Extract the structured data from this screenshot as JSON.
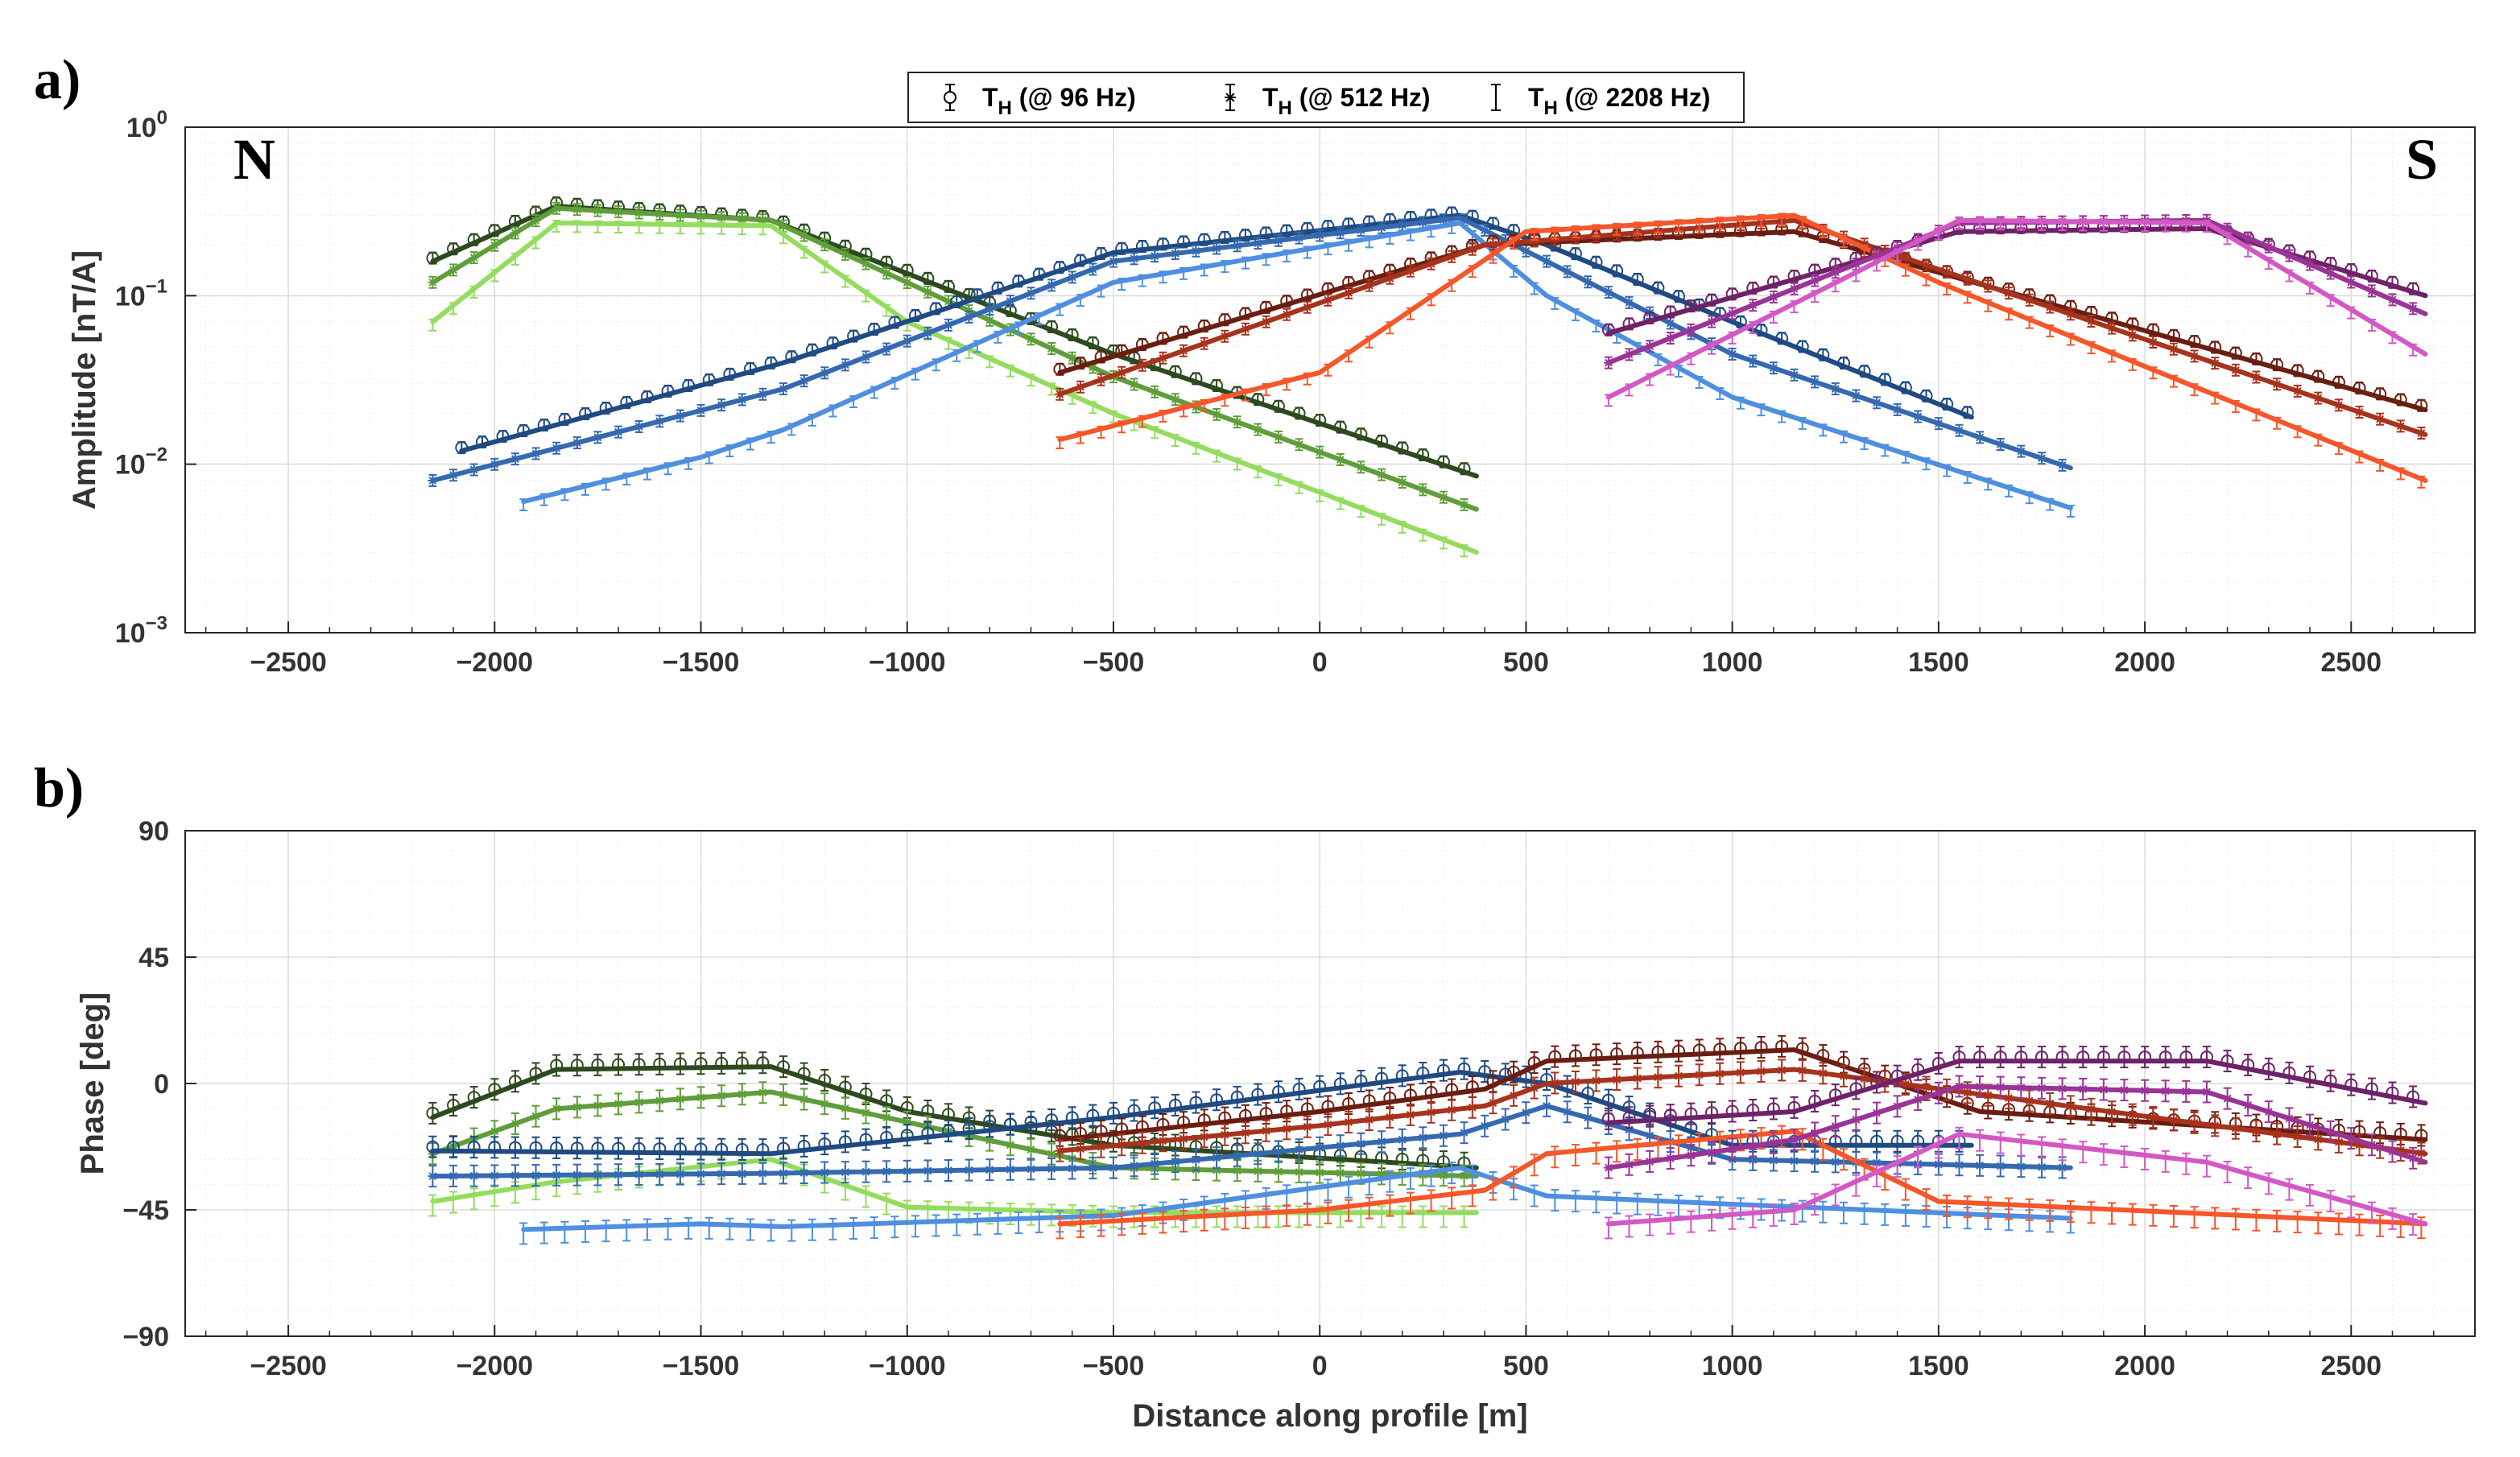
{
  "figure": {
    "panel_a_label": "a)",
    "panel_b_label": "b)",
    "north_label": "N",
    "south_label": "S",
    "legend": [
      {
        "name": "T_H (@ 96 Hz)",
        "prefix": "T",
        "sub": "H",
        "suffix": " (@ 96 Hz)",
        "marker": "circle"
      },
      {
        "name": "T_H (@ 512 Hz)",
        "prefix": "T",
        "sub": "H",
        "suffix": " (@ 512 Hz)",
        "marker": "star"
      },
      {
        "name": "T_H (@ 2208 Hz)",
        "prefix": "T",
        "sub": "H",
        "suffix": " (@ 2208 Hz)",
        "marker": "none"
      }
    ]
  },
  "chart_data": [
    {
      "type": "line",
      "panel": "a",
      "ylabel": "Amplitude [nT/A]",
      "yscale": "log",
      "xlim": [
        -2750,
        2800
      ],
      "ylim": [
        0.001,
        1
      ],
      "x_ticks": [
        -2500,
        -2000,
        -1500,
        -1000,
        -500,
        0,
        500,
        1000,
        1500,
        2000,
        2500
      ],
      "y_ticks": [
        {
          "value": 0.001,
          "base": "10",
          "exp": "-3"
        },
        {
          "value": 0.01,
          "base": "10",
          "exp": "-2"
        },
        {
          "value": 0.1,
          "base": "10",
          "exp": "-1"
        },
        {
          "value": 1,
          "base": "10",
          "exp": "0"
        }
      ],
      "grid": true,
      "legend_position": "top-center",
      "series": [
        {
          "color": "#2c4a1e",
          "freq": "96 Hz",
          "x": [
            -2150,
            -1850,
            -1330,
            -500,
            380
          ],
          "y": [
            0.16,
            0.34,
            0.28,
            0.045,
            0.0085
          ]
        },
        {
          "color": "#5f9e3a",
          "freq": "512 Hz",
          "x": [
            -2150,
            -1850,
            -1330,
            -500,
            380
          ],
          "y": [
            0.12,
            0.33,
            0.28,
            0.033,
            0.0054
          ]
        },
        {
          "color": "#94dc5e",
          "freq": "2208 Hz",
          "x": [
            -2150,
            -1850,
            -1330,
            -1000,
            -500,
            380
          ],
          "y": [
            0.07,
            0.27,
            0.26,
            0.07,
            0.02,
            0.003
          ]
        },
        {
          "color": "#1f4a82",
          "freq": "96 Hz",
          "x": [
            -2080,
            -1300,
            -500,
            340,
            550,
            1000,
            1580
          ],
          "y": [
            0.012,
            0.04,
            0.18,
            0.3,
            0.2,
            0.07,
            0.019
          ]
        },
        {
          "color": "#3569b0",
          "freq": "512 Hz",
          "x": [
            -2150,
            -1300,
            -500,
            340,
            550,
            1000,
            1820
          ],
          "y": [
            0.008,
            0.028,
            0.16,
            0.29,
            0.16,
            0.045,
            0.0095
          ]
        },
        {
          "color": "#4e8fe0",
          "freq": "2208 Hz",
          "x": [
            -1930,
            -1500,
            -1300,
            -500,
            340,
            550,
            1000,
            1820
          ],
          "y": [
            0.006,
            0.011,
            0.016,
            0.12,
            0.27,
            0.1,
            0.025,
            0.0055
          ]
        },
        {
          "color": "#6a1e12",
          "freq": "96 Hz",
          "x": [
            -630,
            400,
            1150,
            2680
          ],
          "y": [
            0.035,
            0.2,
            0.24,
            0.021
          ]
        },
        {
          "color": "#a8331d",
          "freq": "512 Hz",
          "x": [
            -630,
            400,
            1150,
            2680
          ],
          "y": [
            0.026,
            0.2,
            0.28,
            0.015
          ]
        },
        {
          "color": "#f5562a",
          "freq": "2208 Hz",
          "x": [
            -630,
            0,
            500,
            1150,
            1500,
            2680
          ],
          "y": [
            0.014,
            0.035,
            0.24,
            0.3,
            0.12,
            0.008
          ]
        },
        {
          "color": "#6e2268",
          "freq": "96 Hz",
          "x": [
            700,
            1550,
            2150,
            2680
          ],
          "y": [
            0.06,
            0.24,
            0.25,
            0.1
          ]
        },
        {
          "color": "#9a3496",
          "freq": "512 Hz",
          "x": [
            700,
            1550,
            2150,
            2680
          ],
          "y": [
            0.04,
            0.27,
            0.28,
            0.078
          ]
        },
        {
          "color": "#d358c6",
          "freq": "2208 Hz",
          "x": [
            700,
            1550,
            2150,
            2680
          ],
          "y": [
            0.025,
            0.28,
            0.27,
            0.045
          ]
        }
      ]
    },
    {
      "type": "line",
      "panel": "b",
      "xlabel": "Distance along profile [m]",
      "ylabel": "Phase [deg]",
      "xlim": [
        -2750,
        2800
      ],
      "ylim": [
        -90,
        90
      ],
      "x_ticks": [
        -2500,
        -2000,
        -1500,
        -1000,
        -500,
        0,
        500,
        1000,
        1500,
        2000,
        2500
      ],
      "y_ticks": [
        90,
        45,
        0,
        -45,
        -90
      ],
      "grid": true,
      "series": [
        {
          "color": "#2c4a1e",
          "freq": "96 Hz",
          "x": [
            -2150,
            -1850,
            -1330,
            -1000,
            -500,
            380
          ],
          "y": [
            -12,
            5,
            6,
            -10,
            -22,
            -30
          ]
        },
        {
          "color": "#5f9e3a",
          "freq": "512 Hz",
          "x": [
            -2150,
            -1850,
            -1330,
            -500,
            380
          ],
          "y": [
            -25,
            -9,
            -3,
            -30,
            -33
          ]
        },
        {
          "color": "#94dc5e",
          "freq": "2208 Hz",
          "x": [
            -2150,
            -1850,
            -1330,
            -1000,
            -500,
            380
          ],
          "y": [
            -42,
            -35,
            -27,
            -44,
            -46,
            -46
          ]
        },
        {
          "color": "#1f4a82",
          "freq": "96 Hz",
          "x": [
            -2150,
            -1330,
            -500,
            340,
            550,
            1000,
            1580
          ],
          "y": [
            -24,
            -25,
            -12,
            4,
            0,
            -22,
            -22
          ]
        },
        {
          "color": "#3569b0",
          "freq": "512 Hz",
          "x": [
            -2150,
            -1330,
            -500,
            340,
            550,
            1000,
            1820
          ],
          "y": [
            -33,
            -32,
            -30,
            -18,
            -8,
            -27,
            -30
          ]
        },
        {
          "color": "#4e8fe0",
          "freq": "2208 Hz",
          "x": [
            -1930,
            -1500,
            -1300,
            -500,
            340,
            550,
            1000,
            1820
          ],
          "y": [
            -52,
            -50,
            -51,
            -47,
            -30,
            -40,
            -43,
            -48
          ]
        },
        {
          "color": "#6a1e12",
          "freq": "96 Hz",
          "x": [
            -630,
            0,
            400,
            550,
            1150,
            1600,
            2680
          ],
          "y": [
            -20,
            -10,
            -2,
            8,
            12,
            -10,
            -20
          ]
        },
        {
          "color": "#a8331d",
          "freq": "512 Hz",
          "x": [
            -630,
            0,
            400,
            550,
            1150,
            2680
          ],
          "y": [
            -24,
            -15,
            -8,
            0,
            5,
            -25
          ]
        },
        {
          "color": "#f5562a",
          "freq": "2208 Hz",
          "x": [
            -630,
            0,
            400,
            550,
            1150,
            1500,
            2680
          ],
          "y": [
            -50,
            -45,
            -38,
            -25,
            -17,
            -42,
            -50
          ]
        },
        {
          "color": "#6e2268",
          "freq": "96 Hz",
          "x": [
            700,
            1150,
            1550,
            2150,
            2680
          ],
          "y": [
            -14,
            -10,
            8,
            8,
            -7
          ]
        },
        {
          "color": "#9a3496",
          "freq": "512 Hz",
          "x": [
            700,
            1150,
            1550,
            2150,
            2680
          ],
          "y": [
            -30,
            -20,
            -1,
            -3,
            -28
          ]
        },
        {
          "color": "#d358c6",
          "freq": "2208 Hz",
          "x": [
            700,
            1150,
            1550,
            2150,
            2680
          ],
          "y": [
            -50,
            -45,
            -18,
            -28,
            -50
          ]
        }
      ]
    }
  ]
}
